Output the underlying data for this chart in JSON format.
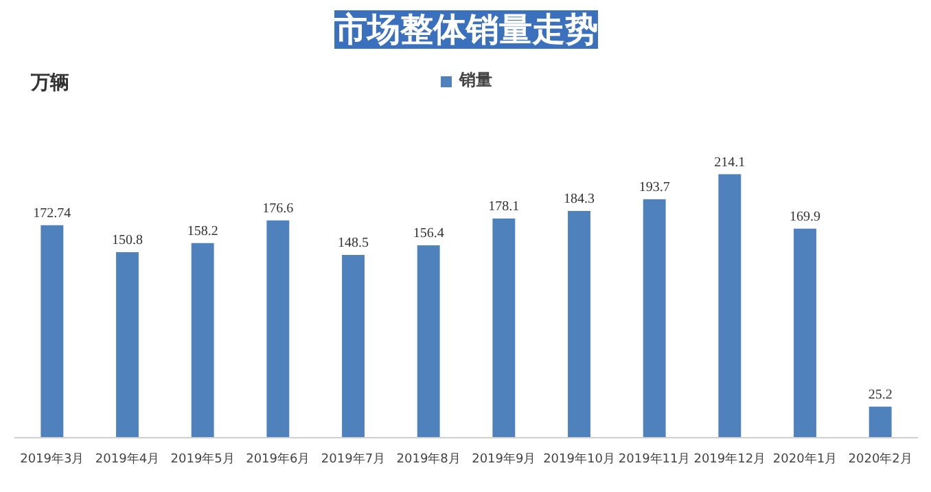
{
  "chart_data": {
    "type": "bar",
    "title": "市场整体销量走势",
    "ylabel": "万辆",
    "categories": [
      "2019年3月",
      "2019年4月",
      "2019年5月",
      "2019年6月",
      "2019年7月",
      "2019年8月",
      "2019年9月",
      "2019年10月",
      "2019年11月",
      "2019年12月",
      "2020年1月",
      "2020年2月"
    ],
    "series": [
      {
        "name": "销量",
        "color": "#4f81bd",
        "values": [
          172.74,
          150.8,
          158.2,
          176.6,
          148.5,
          156.4,
          178.1,
          184.3,
          193.7,
          214.1,
          169.9,
          25.2
        ]
      }
    ],
    "data_labels": true,
    "grid": false,
    "legend": "top",
    "tick_labels": "x"
  }
}
